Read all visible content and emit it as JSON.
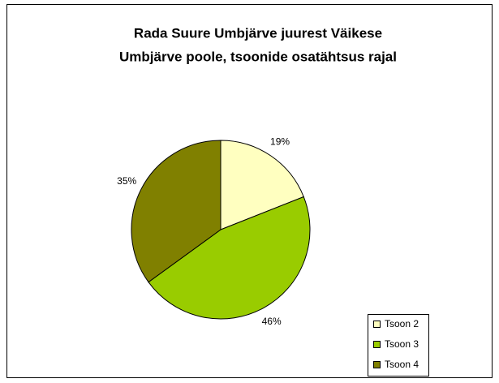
{
  "chart_data": {
    "type": "pie",
    "title": [
      "Rada Suure Umbjärve juurest Väikese",
      "Umbjärve poole, tsoonide osatähtsus rajal"
    ],
    "categories": [
      "Tsoon 2",
      "Tsoon 3",
      "Tsoon 4"
    ],
    "values": [
      19,
      46,
      35
    ],
    "value_labels": [
      "19%",
      "46%",
      "35%"
    ],
    "colors": [
      "#ffffc0",
      "#99cc00",
      "#808000"
    ],
    "legend": "bottom-right"
  }
}
